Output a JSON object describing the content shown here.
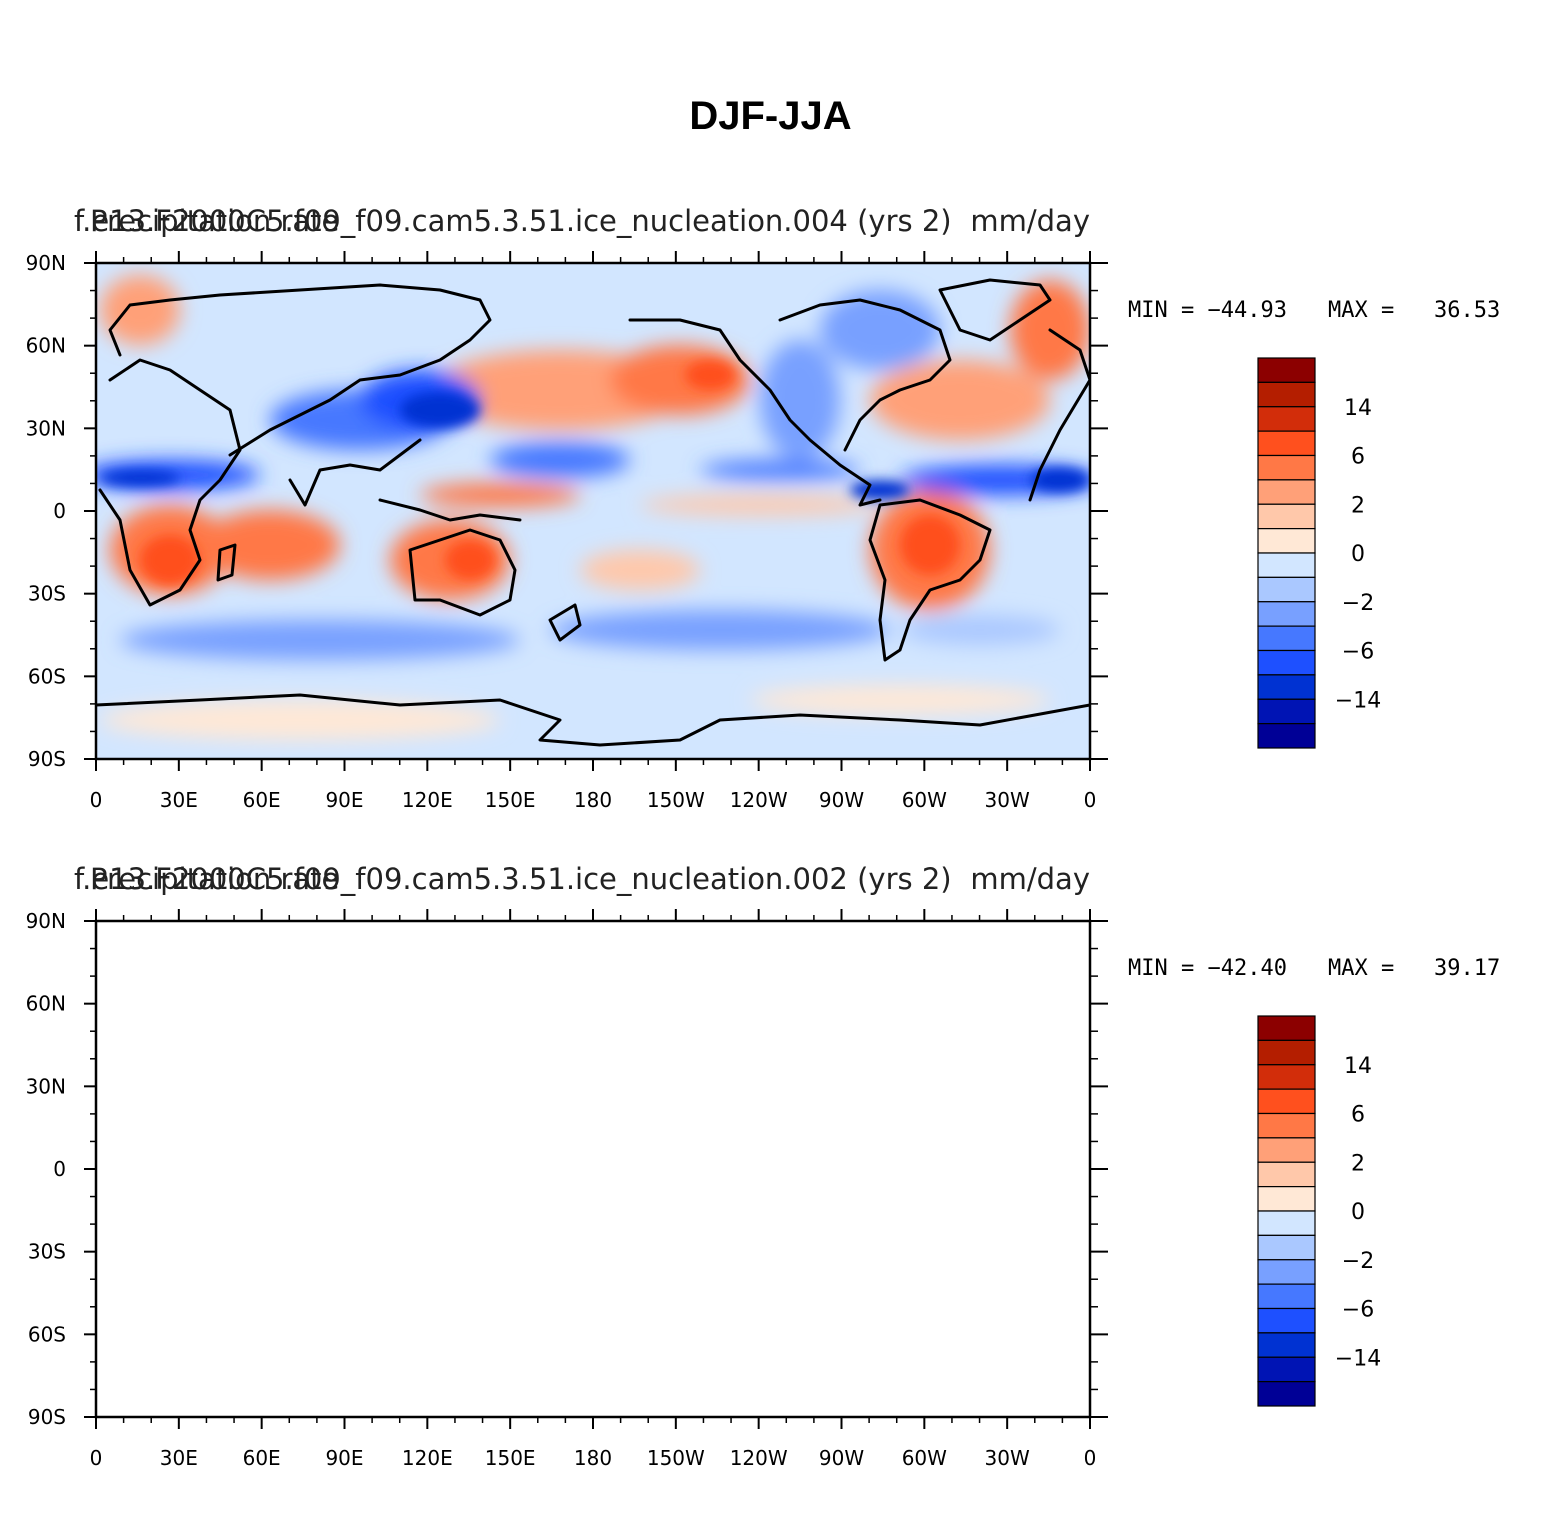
{
  "main_title": "DJF-JJA",
  "colors": {
    "neg": [
      "#000096",
      "#0014b4",
      "#0032d2",
      "#1e50ff",
      "#4678ff",
      "#78a0ff",
      "#aac8ff",
      "#d2e6ff"
    ],
    "pos": [
      "#ffe8d6",
      "#ffc8aa",
      "#ffa078",
      "#ff7846",
      "#ff501e",
      "#d22d0a",
      "#b41e00",
      "#8c0000"
    ]
  },
  "x_ticks": [
    "0",
    "30E",
    "60E",
    "90E",
    "120E",
    "150E",
    "180",
    "150W",
    "120W",
    "90W",
    "60W",
    "30W",
    "0"
  ],
  "y_ticks": [
    "90N",
    "60N",
    "30N",
    "0",
    "30S",
    "60S",
    "90S"
  ],
  "colorbar_labels": [
    "14",
    "6",
    "2",
    "0",
    "−2",
    "−6",
    "−14"
  ],
  "panels": [
    {
      "title_left": "f.e13.F2000C5.f09_f09.cam5.3.51.ice_nucleation.004 (yrs 2)",
      "title_overlay": "Precipitation rate",
      "title_right": "mm/day",
      "min_text": "MIN = −44.93",
      "max_text": "MAX =   36.53"
    },
    {
      "title_left": "f.e13.F2000C5.f09_f09.cam5.3.51.ice_nucleation.002 (yrs 2)",
      "title_overlay": "Precipitation rate",
      "title_right": "mm/day",
      "min_text": "MIN = −42.40",
      "max_text": "MAX =   39.17"
    }
  ]
}
